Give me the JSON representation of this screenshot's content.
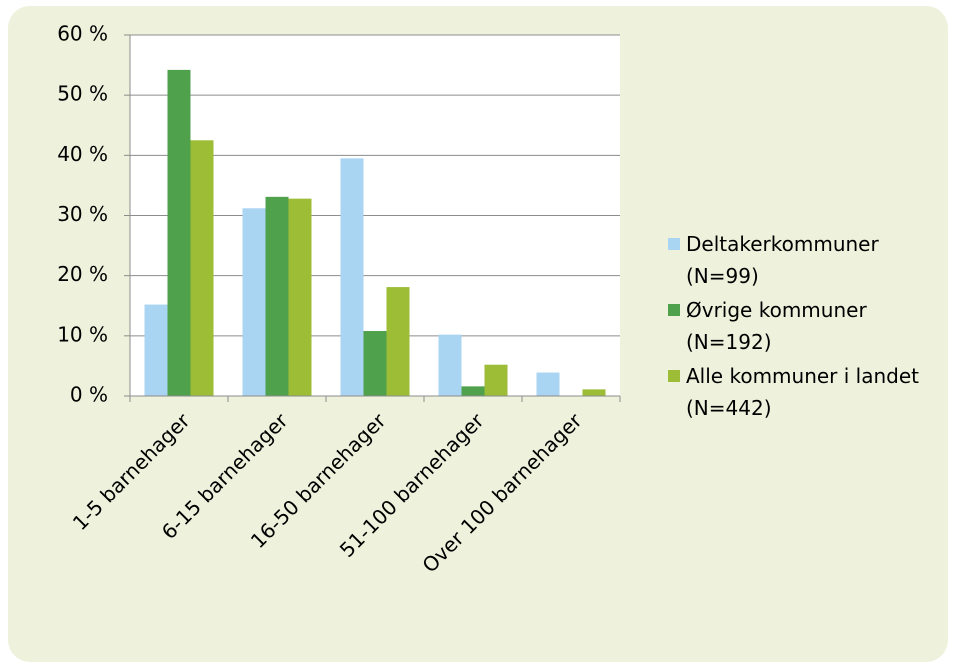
{
  "chart_data": {
    "type": "bar",
    "categories": [
      "1-5 barnehager",
      "6-15 barnehager",
      "16-50 barnehager",
      "51-100 barnehager",
      "Over 100 barnehager"
    ],
    "series": [
      {
        "name": "Deltakerkommuner (N=99)",
        "color": "#a9d5f3",
        "values": [
          15.2,
          31.2,
          39.5,
          10.2,
          3.9
        ]
      },
      {
        "name": "Øvrige kommuner (N=192)",
        "color": "#4fa14c",
        "values": [
          54.2,
          33.1,
          10.8,
          1.6,
          0
        ]
      },
      {
        "name": "Alle kommuner i landet (N=442)",
        "color": "#9dbd36",
        "values": [
          42.5,
          32.8,
          18.1,
          5.2,
          1.1
        ]
      }
    ],
    "ylim": [
      0,
      60
    ],
    "yticks": [
      {
        "value": 0,
        "label": "0 %"
      },
      {
        "value": 10,
        "label": "10 %"
      },
      {
        "value": 20,
        "label": "20 %"
      },
      {
        "value": 30,
        "label": "30 %"
      },
      {
        "value": 40,
        "label": "40 %"
      },
      {
        "value": 50,
        "label": "50 %"
      },
      {
        "value": 60,
        "label": "60 %"
      }
    ],
    "grid": true,
    "legend": "right"
  }
}
